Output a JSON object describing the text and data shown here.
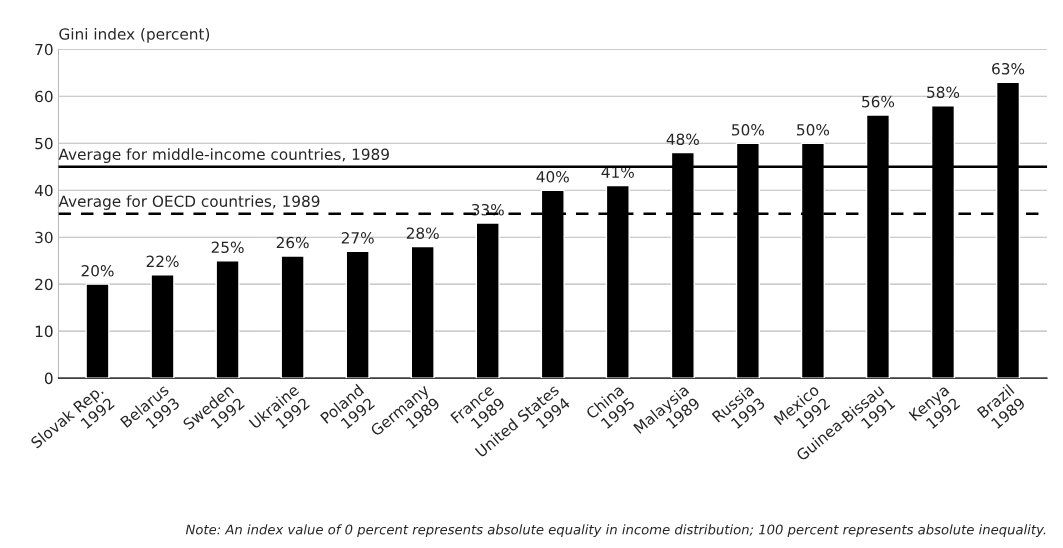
{
  "chart_data": {
    "type": "bar",
    "ylabel": "Gini index (percent)",
    "categories": [
      "Slovak Rep.\n1992",
      "Belarus\n1993",
      "Sweden\n1992",
      "Ukraine\n1992",
      "Poland\n1992",
      "Germany\n1989",
      "France\n1989",
      "United States\n1994",
      "China\n1995",
      "Malaysia\n1989",
      "Russia\n1993",
      "Mexico\n1992",
      "Guinea-Bissau\n1991",
      "Kenya\n1992",
      "Brazil\n1989"
    ],
    "values": [
      20,
      22,
      25,
      26,
      27,
      28,
      33,
      40,
      41,
      48,
      50,
      50,
      56,
      58,
      63
    ],
    "value_labels": [
      "20%",
      "22%",
      "25%",
      "26%",
      "27%",
      "28%",
      "33%",
      "40%",
      "41%",
      "48%",
      "50%",
      "50%",
      "56%",
      "58%",
      "63%"
    ],
    "color": "#000000",
    "ylim": [
      0,
      70
    ],
    "yticks": [
      0,
      10,
      20,
      30,
      40,
      50,
      60,
      70
    ],
    "grid": "y",
    "ref_lines": [
      {
        "axis": "y",
        "value": 45,
        "label": "Average for middle-income countries, 1989",
        "color": "#000000",
        "line_style": "solid"
      },
      {
        "axis": "y",
        "value": 35,
        "label": "Average for OECD countries, 1989",
        "color": "#000000",
        "line_style": "dashed"
      }
    ],
    "annotations": [
      "Note: An index value of 0 percent represents absolute equality in income distribution; 100 percent represents absolute inequality."
    ]
  }
}
